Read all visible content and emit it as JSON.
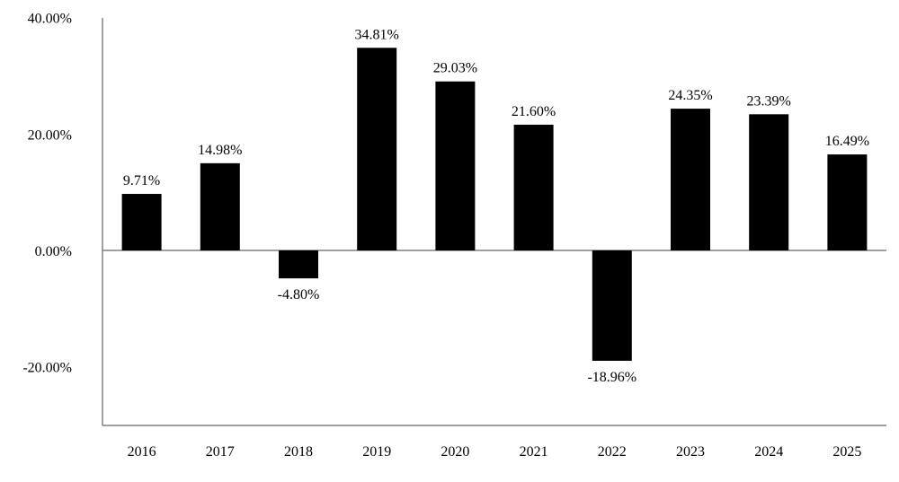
{
  "chart_data": {
    "type": "bar",
    "categories": [
      "2016",
      "2017",
      "2018",
      "2019",
      "2020",
      "2021",
      "2022",
      "2023",
      "2024",
      "2025"
    ],
    "values": [
      9.71,
      14.98,
      -4.8,
      34.81,
      29.03,
      21.6,
      -18.96,
      24.35,
      23.39,
      16.49
    ],
    "data_labels": [
      "9.71%",
      "14.98%",
      "-4.80%",
      "34.81%",
      "29.03%",
      "21.60%",
      "-18.96%",
      "24.35%",
      "23.39%",
      "16.49%"
    ],
    "yticks": [
      40,
      20,
      0,
      -20
    ],
    "ytick_labels": [
      "40.00%",
      "20.00%",
      "0.00%",
      "-20.00%"
    ],
    "ylim": [
      -30,
      40
    ],
    "grid": false,
    "legend": "none",
    "bar_color": "#000000"
  }
}
